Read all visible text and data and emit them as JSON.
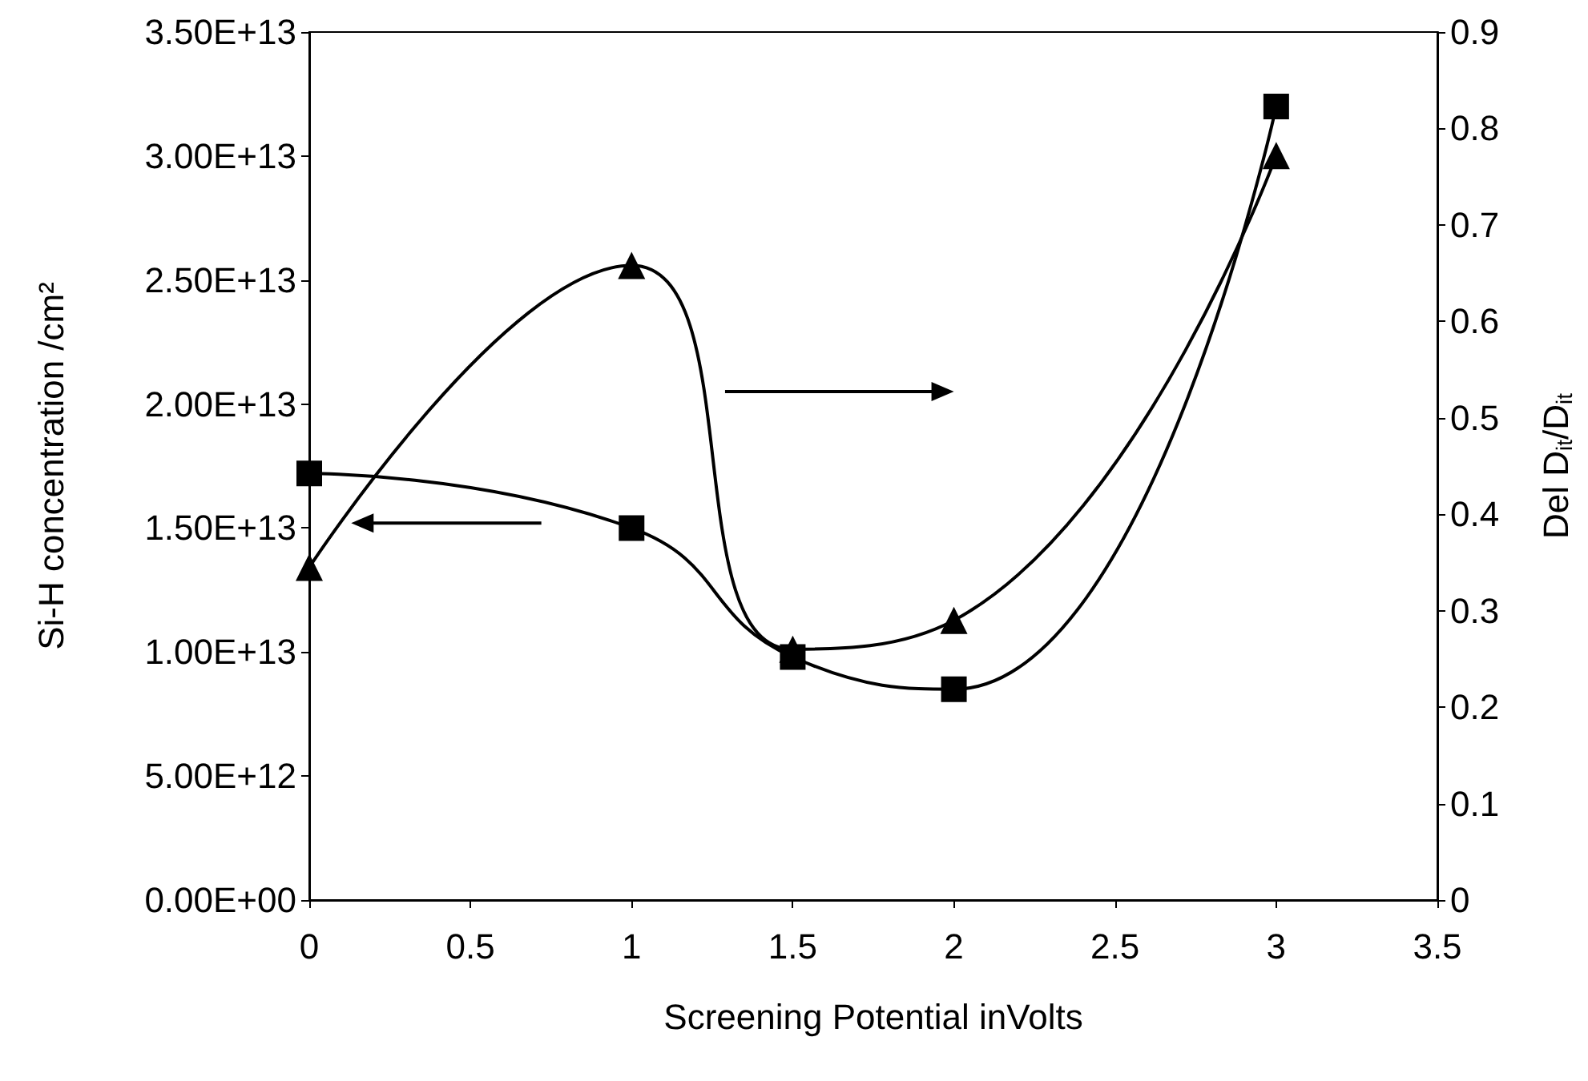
{
  "chart_data": {
    "type": "line",
    "xlabel": "Screening Potential inVolts",
    "ylabel": "Si-H concentration /cm²",
    "y2label": "Del D$_{it}$/D$_{it}$",
    "x": [
      0,
      1,
      1.5,
      2,
      3
    ],
    "series": [
      {
        "color": "#000000",
        "marker": "square",
        "values": [
          17200000000000.0,
          15000000000000.0,
          9800000000000.0,
          8500000000000.0,
          32000000000000.0
        ]
      },
      {
        "color": "#000000",
        "marker": "triangle",
        "axis": "y2",
        "values": [
          0.345,
          0.658,
          0.26,
          0.29,
          0.772
        ]
      }
    ],
    "xlim": [
      0,
      3.5
    ],
    "xticks": [
      0,
      0.5,
      1,
      1.5,
      2,
      2.5,
      3,
      3.5
    ],
    "ylim": [
      0,
      35000000000000.0
    ],
    "yticks": [
      {
        "value": 0,
        "label": "0.00E+00"
      },
      {
        "value": 5000000000000.0,
        "label": "5.00E+12"
      },
      {
        "value": 10000000000000.0,
        "label": "1.00E+13"
      },
      {
        "value": 15000000000000.0,
        "label": "1.50E+13"
      },
      {
        "value": 20000000000000.0,
        "label": "2.00E+13"
      },
      {
        "value": 25000000000000.0,
        "label": "2.50E+13"
      },
      {
        "value": 30000000000000.0,
        "label": "3.00E+13"
      },
      {
        "value": 35000000000000.0,
        "label": "3.50E+13"
      }
    ],
    "y2lim": [
      0,
      0.9
    ],
    "y2ticks": [
      0,
      0.1,
      0.2,
      0.3,
      0.4,
      0.5,
      0.6,
      0.7,
      0.8,
      0.9
    ],
    "grid": false,
    "line_style": "solid"
  }
}
